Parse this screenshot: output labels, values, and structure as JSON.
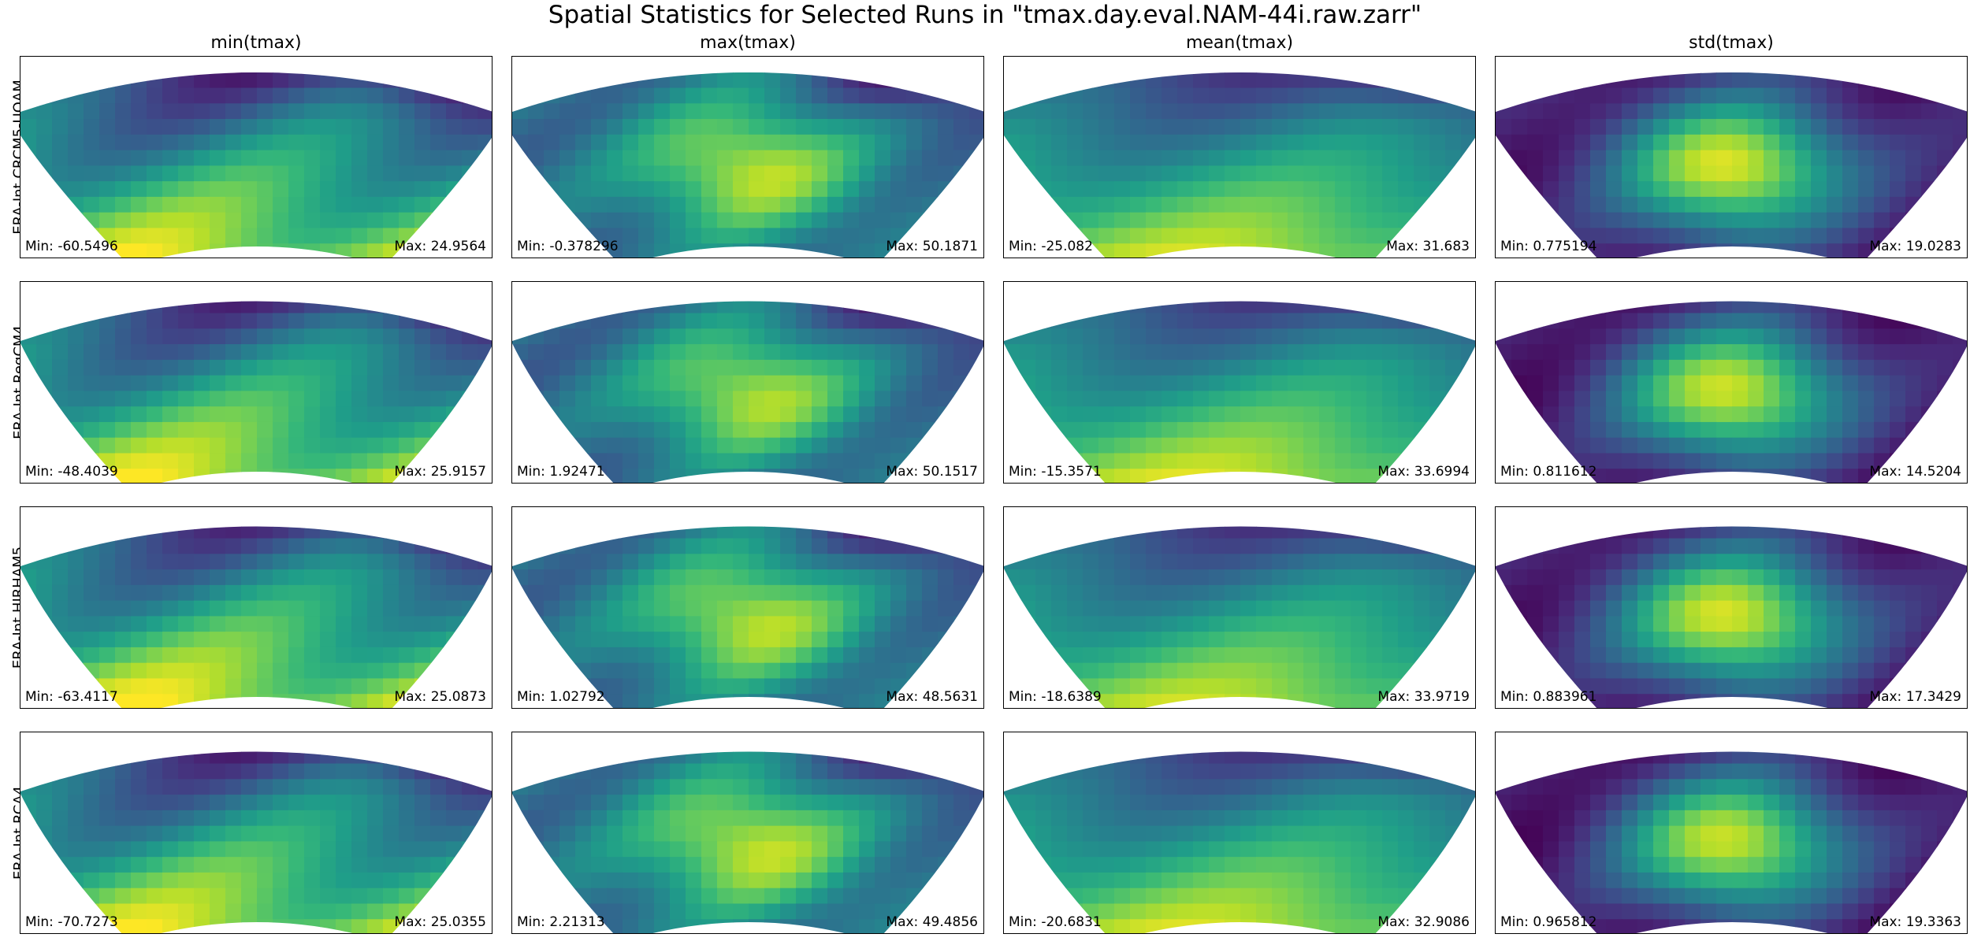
{
  "chart_data": {
    "type": "heatmap",
    "title": "Spatial Statistics for Selected Runs in \"tmax.day.eval.NAM-44i.raw.zarr\"",
    "colormap": "viridis",
    "columns": [
      "min(tmax)",
      "max(tmax)",
      "mean(tmax)",
      "std(tmax)"
    ],
    "rows": [
      "ERA-Int.CRCM5-UQAM",
      "ERA-Int.RegCM4",
      "ERA-Int.HIRHAM5",
      "ERA-Int.RCA4"
    ],
    "min_label": "Min:",
    "max_label": "Max:",
    "panels": [
      [
        {
          "min": "-60.5496",
          "max": "24.9564"
        },
        {
          "min": "-0.378296",
          "max": "50.1871"
        },
        {
          "min": "-25.082",
          "max": "31.683"
        },
        {
          "min": "0.775194",
          "max": "19.0283"
        }
      ],
      [
        {
          "min": "-48.4039",
          "max": "25.9157"
        },
        {
          "min": "1.92471",
          "max": "50.1517"
        },
        {
          "min": "-15.3571",
          "max": "33.6994"
        },
        {
          "min": "0.811612",
          "max": "14.5204"
        }
      ],
      [
        {
          "min": "-63.4117",
          "max": "25.0873"
        },
        {
          "min": "1.02792",
          "max": "48.5631"
        },
        {
          "min": "-18.6389",
          "max": "33.9719"
        },
        {
          "min": "0.883961",
          "max": "17.3429"
        }
      ],
      [
        {
          "min": "-70.7273",
          "max": "25.0355"
        },
        {
          "min": "2.21313",
          "max": "49.4856"
        },
        {
          "min": "-20.6831",
          "max": "32.9086"
        },
        {
          "min": "0.965812",
          "max": "19.3363"
        }
      ]
    ]
  }
}
